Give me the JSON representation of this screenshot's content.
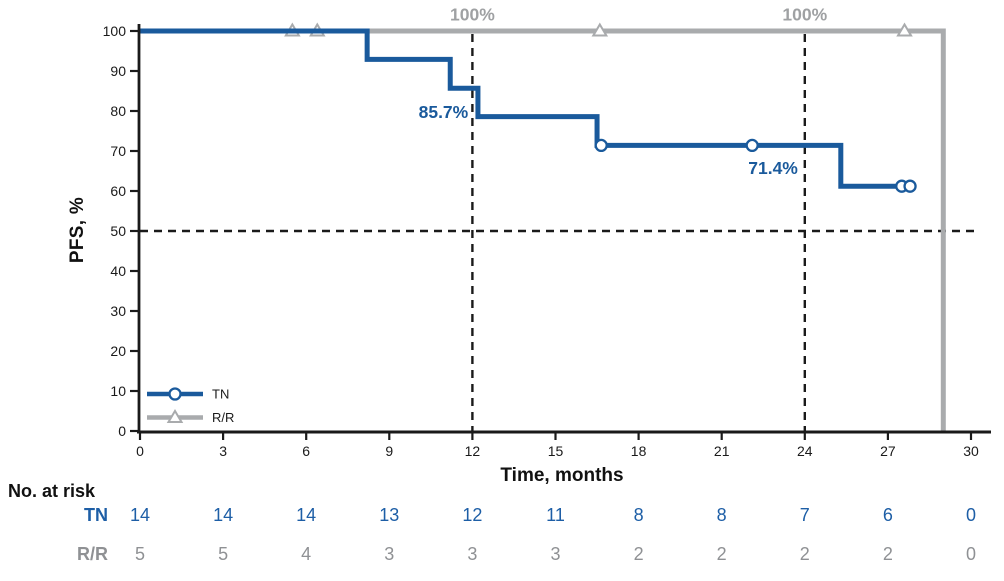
{
  "chart_data": {
    "type": "line",
    "subtype": "kaplan-meier-step",
    "title": "",
    "xlabel": "Time, months",
    "ylabel": "PFS, %",
    "xlim": [
      0,
      30
    ],
    "ylim": [
      0,
      100
    ],
    "xticks": [
      0,
      3,
      6,
      9,
      12,
      15,
      18,
      21,
      24,
      27,
      30
    ],
    "yticks": [
      0,
      10,
      20,
      30,
      40,
      50,
      60,
      70,
      80,
      90,
      100
    ],
    "grid": false,
    "legend_position": "inside-bottom-left",
    "axis_color": "#1a1a1a",
    "series": [
      {
        "name": "TN",
        "color": "#1a5a9c",
        "marker": "circle",
        "steps": [
          [
            0,
            100
          ],
          [
            8.2,
            100
          ],
          [
            8.2,
            92.9
          ],
          [
            11.2,
            92.9
          ],
          [
            11.2,
            85.7
          ],
          [
            12.2,
            85.7
          ],
          [
            12.2,
            78.6
          ],
          [
            16.5,
            78.6
          ],
          [
            16.5,
            71.4
          ],
          [
            25.3,
            71.4
          ],
          [
            25.3,
            61.2
          ],
          [
            27.8,
            61.2
          ]
        ],
        "censors": [
          [
            16.65,
            71.4
          ],
          [
            22.1,
            71.4
          ],
          [
            27.5,
            61.2
          ],
          [
            27.8,
            61.2
          ]
        ]
      },
      {
        "name": "R/R",
        "color": "#a9abad",
        "marker": "triangle",
        "steps": [
          [
            0,
            100
          ],
          [
            29,
            100
          ],
          [
            29,
            0
          ]
        ],
        "censors": [
          [
            5.5,
            100
          ],
          [
            6.4,
            100
          ],
          [
            16.6,
            100
          ],
          [
            27.6,
            100
          ]
        ]
      }
    ],
    "reference_lines": {
      "vertical_dashed_x": [
        12,
        24
      ],
      "horizontal_dashed_y": [
        50
      ],
      "color": "#1a1a1a"
    },
    "annotations": [
      {
        "text": "85.7%",
        "x": 11.85,
        "y": 78.2,
        "anchor": "end",
        "color": "#1a5a9c"
      },
      {
        "text": "71.4%",
        "x": 23.75,
        "y": 64.3,
        "anchor": "end",
        "color": "#1a5a9c"
      },
      {
        "text": "100%",
        "x": 12,
        "y": 102.6,
        "anchor": "middle",
        "color": "#9fa1a3"
      },
      {
        "text": "100%",
        "x": 24,
        "y": 102.6,
        "anchor": "middle",
        "color": "#9fa1a3"
      }
    ]
  },
  "risk_table": {
    "title": "No. at risk",
    "time_points": [
      0,
      3,
      6,
      9,
      12,
      15,
      18,
      21,
      24,
      27,
      30
    ],
    "rows": [
      {
        "label": "TN",
        "color": "#1d5ea6",
        "values": [
          14,
          14,
          14,
          13,
          12,
          11,
          8,
          8,
          7,
          6,
          0
        ]
      },
      {
        "label": "R/R",
        "color": "#8f9194",
        "values": [
          5,
          5,
          4,
          3,
          3,
          3,
          2,
          2,
          2,
          2,
          0
        ]
      }
    ]
  }
}
